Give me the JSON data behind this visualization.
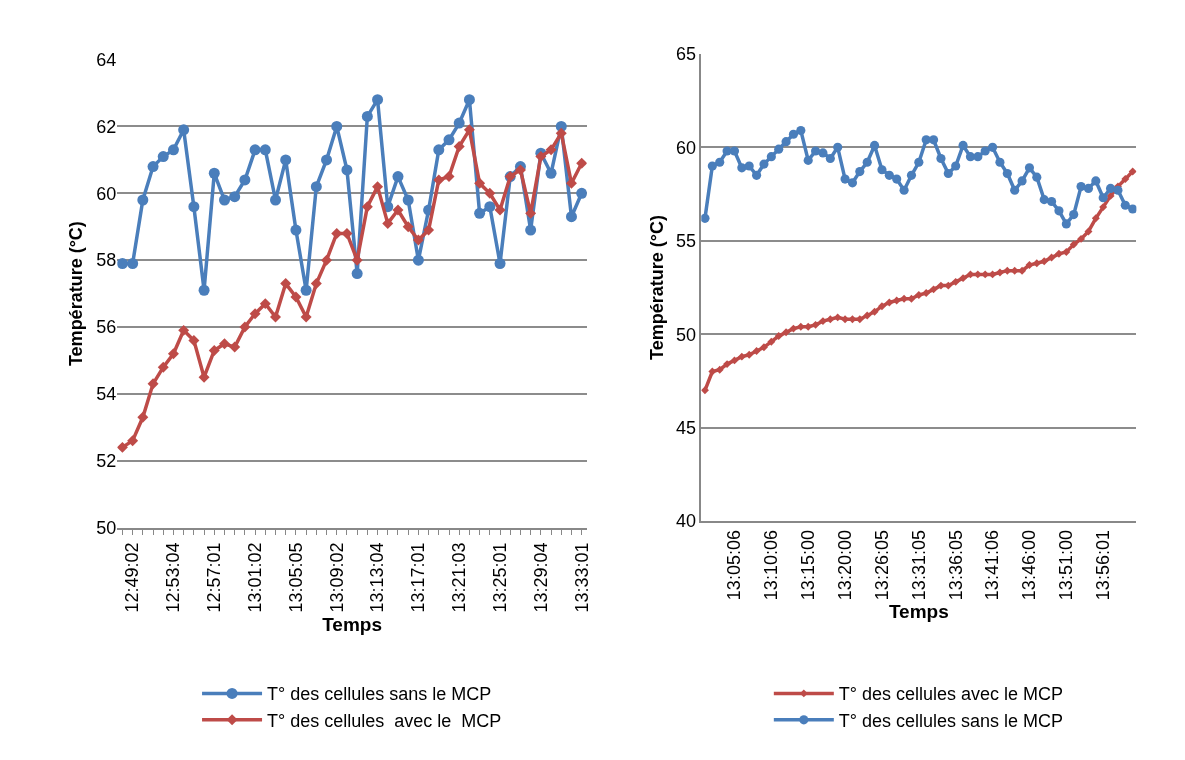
{
  "chart_data": [
    {
      "type": "line",
      "xlabel": "Temps",
      "ylabel": "Température (°C)",
      "ylim": [
        50,
        64
      ],
      "yticks": [
        50,
        52,
        54,
        56,
        58,
        60,
        62,
        64
      ],
      "grid": "y",
      "legend": "bottom",
      "categories": [
        null,
        "12:49:02",
        null,
        null,
        null,
        "12:53:04",
        null,
        null,
        null,
        "12:57:01",
        null,
        null,
        null,
        "13:01:02",
        null,
        null,
        null,
        "13:05:05",
        null,
        null,
        null,
        "13:09:02",
        null,
        null,
        null,
        "13:13:04",
        null,
        null,
        null,
        "13:17:01",
        null,
        null,
        null,
        "13:21:03",
        null,
        null,
        null,
        "13:25:01",
        null,
        null,
        null,
        "13:29:04",
        null,
        null,
        null,
        "13:33:01"
      ],
      "series": [
        {
          "name": "T° des cellules sans le MCP",
          "color": "#4a7ebb",
          "marker": "circle",
          "values": [
            57.9,
            57.9,
            59.8,
            60.8,
            61.1,
            61.3,
            61.9,
            59.6,
            57.1,
            60.6,
            59.8,
            59.9,
            60.4,
            61.3,
            61.3,
            59.8,
            61.0,
            58.9,
            57.1,
            60.2,
            61.0,
            62.0,
            60.7,
            57.6,
            62.3,
            62.8,
            59.6,
            60.5,
            59.8,
            58.0,
            59.5,
            61.3,
            61.6,
            62.1,
            62.8,
            59.4,
            59.6,
            57.9,
            60.5,
            60.8,
            58.9,
            61.2,
            60.6,
            62.0,
            59.3,
            60.0
          ]
        },
        {
          "name": "T° des cellules  avec le  MCP",
          "color": "#be4b48",
          "marker": "diamond",
          "values": [
            52.4,
            52.6,
            53.3,
            54.3,
            54.8,
            55.2,
            55.9,
            55.6,
            54.5,
            55.3,
            55.5,
            55.4,
            56.0,
            56.4,
            56.7,
            56.3,
            57.3,
            56.9,
            56.3,
            57.3,
            58.0,
            58.8,
            58.8,
            58.0,
            59.6,
            60.2,
            59.1,
            59.5,
            59.0,
            58.6,
            58.9,
            60.4,
            60.5,
            61.4,
            61.9,
            60.3,
            60.0,
            59.5,
            60.5,
            60.7,
            59.4,
            61.1,
            61.3,
            61.8,
            60.3,
            60.9
          ]
        }
      ]
    },
    {
      "type": "line",
      "xlabel": "Temps",
      "ylabel": "Température (°C)",
      "ylim": [
        40,
        65
      ],
      "yticks": [
        40,
        45,
        50,
        55,
        60,
        65
      ],
      "grid": "y",
      "legend": "bottom",
      "categories": [
        null,
        null,
        null,
        null,
        "13:05:06",
        null,
        null,
        null,
        null,
        "13:10:06",
        null,
        null,
        null,
        null,
        "13:15:00",
        null,
        null,
        null,
        null,
        "13:20:00",
        null,
        null,
        null,
        null,
        "13:26:05",
        null,
        null,
        null,
        null,
        "13:31:05",
        null,
        null,
        null,
        null,
        "13:36:05",
        null,
        null,
        null,
        null,
        "13:41:06",
        null,
        null,
        null,
        null,
        "13:46:00",
        null,
        null,
        null,
        null,
        "13:51:00",
        null,
        null,
        null,
        null,
        "13:56:01",
        null,
        null,
        null,
        null
      ],
      "series": [
        {
          "name": "T° des cellules avec le MCP",
          "color": "#be4b48",
          "marker": "diamond",
          "values": [
            47.0,
            48.0,
            48.1,
            48.4,
            48.6,
            48.8,
            48.9,
            49.1,
            49.3,
            49.6,
            49.9,
            50.1,
            50.3,
            50.4,
            50.4,
            50.5,
            50.7,
            50.8,
            50.9,
            50.8,
            50.8,
            50.8,
            51.0,
            51.2,
            51.5,
            51.7,
            51.8,
            51.9,
            51.9,
            52.1,
            52.2,
            52.4,
            52.6,
            52.6,
            52.8,
            53.0,
            53.2,
            53.2,
            53.2,
            53.2,
            53.3,
            53.4,
            53.4,
            53.4,
            53.7,
            53.8,
            53.9,
            54.1,
            54.3,
            54.4,
            54.8,
            55.1,
            55.5,
            56.2,
            56.8,
            57.4,
            57.9,
            58.3,
            58.7
          ]
        },
        {
          "name": "T° des cellules sans le MCP",
          "color": "#4a7ebb",
          "marker": "circle",
          "values": [
            56.2,
            59.0,
            59.2,
            59.8,
            59.8,
            58.9,
            59.0,
            58.5,
            59.1,
            59.5,
            59.9,
            60.3,
            60.7,
            60.9,
            59.3,
            59.8,
            59.7,
            59.4,
            60.0,
            58.3,
            58.1,
            58.7,
            59.2,
            60.1,
            58.8,
            58.5,
            58.3,
            57.7,
            58.5,
            59.2,
            60.4,
            60.4,
            59.4,
            58.6,
            59.0,
            60.1,
            59.5,
            59.5,
            59.8,
            60.0,
            59.2,
            58.6,
            57.7,
            58.2,
            58.9,
            58.4,
            57.2,
            57.1,
            56.6,
            55.9,
            56.4,
            57.9,
            57.8,
            58.2,
            57.3,
            57.8,
            57.7,
            56.9,
            56.7
          ]
        }
      ]
    }
  ]
}
